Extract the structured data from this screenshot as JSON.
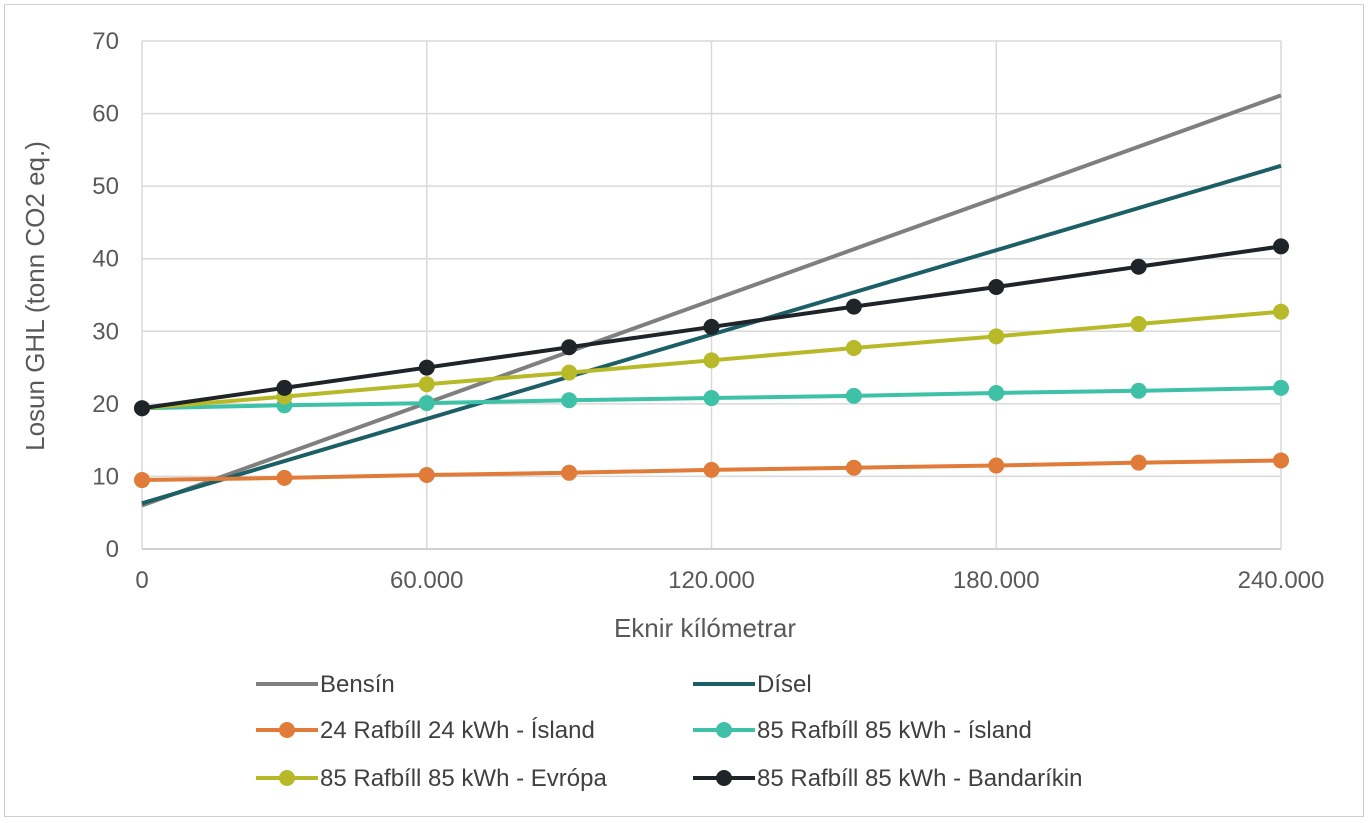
{
  "chart_data": {
    "type": "line",
    "xlabel": "Eknir kílómetrar",
    "ylabel": "Losun GHL (tonn CO2 eq.)",
    "xlim": [
      0,
      240000
    ],
    "ylim": [
      0,
      70
    ],
    "x_ticks": [
      0,
      60000,
      120000,
      180000,
      240000
    ],
    "x_tick_labels": [
      "0",
      "60.000",
      "120.000",
      "180.000",
      "240.000"
    ],
    "y_ticks": [
      0,
      10,
      20,
      30,
      40,
      50,
      60,
      70
    ],
    "y_tick_labels": [
      "0",
      "10",
      "20",
      "30",
      "40",
      "50",
      "60",
      "70"
    ],
    "grid": true,
    "legend_position": "bottom",
    "series": [
      {
        "name": "Bensín",
        "color": "#7f7f7f",
        "markers": false,
        "x": [
          0,
          240000
        ],
        "y": [
          6.0,
          62.5
        ]
      },
      {
        "name": "Dísel",
        "color": "#1d5f66",
        "markers": false,
        "x": [
          0,
          240000
        ],
        "y": [
          6.3,
          52.8
        ]
      },
      {
        "name": "24 Rafbíll 24 kWh - Ísland",
        "color": "#e07b39",
        "markers": true,
        "x": [
          0,
          30000,
          60000,
          90000,
          120000,
          150000,
          180000,
          210000,
          240000
        ],
        "y": [
          9.5,
          9.8,
          10.2,
          10.5,
          10.9,
          11.2,
          11.5,
          11.9,
          12.2
        ]
      },
      {
        "name": "85 Rafbíll 85 kWh - ísland",
        "color": "#3fc1a8",
        "markers": true,
        "x": [
          0,
          30000,
          60000,
          90000,
          120000,
          150000,
          180000,
          210000,
          240000
        ],
        "y": [
          19.4,
          19.8,
          20.1,
          20.5,
          20.8,
          21.1,
          21.5,
          21.8,
          22.2
        ]
      },
      {
        "name": "85 Rafbíll 85 kWh - Evrópa",
        "color": "#b7b929",
        "markers": true,
        "x": [
          0,
          30000,
          60000,
          90000,
          120000,
          150000,
          180000,
          210000,
          240000
        ],
        "y": [
          19.4,
          21.0,
          22.7,
          24.3,
          26.0,
          27.7,
          29.3,
          31.0,
          32.7
        ]
      },
      {
        "name": "85 Rafbíll 85 kWh - Bandaríkin",
        "color": "#1e2428",
        "markers": true,
        "x": [
          0,
          30000,
          60000,
          90000,
          120000,
          150000,
          180000,
          210000,
          240000
        ],
        "y": [
          19.4,
          22.2,
          25.0,
          27.8,
          30.6,
          33.4,
          36.1,
          38.9,
          41.7
        ]
      }
    ]
  }
}
